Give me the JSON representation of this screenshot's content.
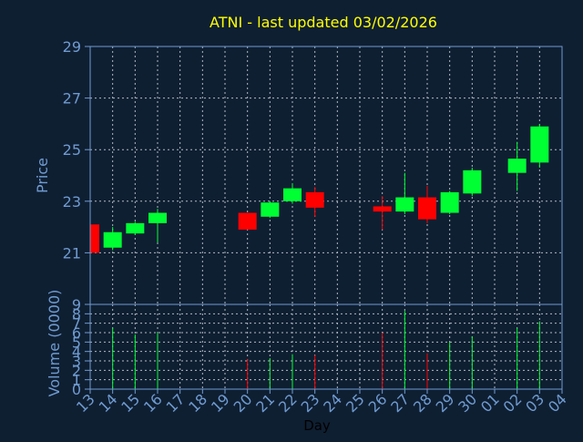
{
  "title": "ATNI - last updated 03/02/2026",
  "colors": {
    "background": "#0f1f32",
    "title": "#ffff00",
    "axis_text": "#6f9bd1",
    "frame": "#6f9bd1",
    "grid": "#b0b8c4",
    "up": "#00ff33",
    "down": "#ff0000"
  },
  "chart_data": [
    {
      "type": "candlestick",
      "title": "ATNI - last updated 03/02/2026",
      "ylabel": "Price",
      "ylim": [
        19,
        29
      ],
      "yticks": [
        "21",
        "23",
        "25",
        "27",
        "29"
      ],
      "grid": true,
      "days": [
        "13",
        "14",
        "15",
        "16",
        "17",
        "18",
        "19",
        "20",
        "21",
        "22",
        "23",
        "24",
        "25",
        "26",
        "27",
        "28",
        "29",
        "30",
        "01",
        "02",
        "03",
        "04"
      ],
      "candles": [
        {
          "day": "13",
          "open": 22.1,
          "close": 21.0,
          "high": 22.1,
          "low": 21.0
        },
        {
          "day": "14",
          "open": 21.2,
          "close": 21.8,
          "high": 22.0,
          "low": 21.1
        },
        {
          "day": "15",
          "open": 21.75,
          "close": 22.15,
          "high": 22.2,
          "low": 21.7
        },
        {
          "day": "16",
          "open": 22.15,
          "close": 22.55,
          "high": 22.7,
          "low": 21.4
        },
        {
          "day": "20",
          "open": 22.55,
          "close": 21.9,
          "high": 22.55,
          "low": 21.9
        },
        {
          "day": "21",
          "open": 22.4,
          "close": 22.95,
          "high": 23.0,
          "low": 22.35
        },
        {
          "day": "22",
          "open": 23.0,
          "close": 23.5,
          "high": 23.7,
          "low": 22.9
        },
        {
          "day": "23",
          "open": 23.35,
          "close": 22.75,
          "high": 23.55,
          "low": 22.4
        },
        {
          "day": "26",
          "open": 22.8,
          "close": 22.6,
          "high": 23.2,
          "low": 21.9
        },
        {
          "day": "27",
          "open": 22.6,
          "close": 23.15,
          "high": 24.1,
          "low": 22.5
        },
        {
          "day": "28",
          "open": 23.15,
          "close": 22.3,
          "high": 23.6,
          "low": 22.15
        },
        {
          "day": "29",
          "open": 22.55,
          "close": 23.35,
          "high": 23.4,
          "low": 22.5
        },
        {
          "day": "30",
          "open": 23.3,
          "close": 24.2,
          "high": 24.3,
          "low": 23.2
        },
        {
          "day": "02",
          "open": 24.1,
          "close": 24.65,
          "high": 25.3,
          "low": 23.4
        },
        {
          "day": "03",
          "open": 24.5,
          "close": 25.9,
          "high": 26.0,
          "low": 24.3
        }
      ]
    },
    {
      "type": "bar",
      "ylabel": "Volume (0000)",
      "xlabel": "Day",
      "ylim": [
        0,
        9
      ],
      "yticks": [
        "0",
        "1",
        "2",
        "3",
        "4",
        "5",
        "6",
        "7",
        "8",
        "9"
      ],
      "grid": true,
      "days": [
        "13",
        "14",
        "15",
        "16",
        "17",
        "18",
        "19",
        "20",
        "21",
        "22",
        "23",
        "24",
        "25",
        "26",
        "27",
        "28",
        "29",
        "30",
        "01",
        "02",
        "03",
        "04"
      ],
      "bars": [
        {
          "day": "13",
          "value": 0.0,
          "dir": "down"
        },
        {
          "day": "14",
          "value": 6.5,
          "dir": "up"
        },
        {
          "day": "15",
          "value": 5.8,
          "dir": "up"
        },
        {
          "day": "16",
          "value": 6.0,
          "dir": "up"
        },
        {
          "day": "20",
          "value": 3.2,
          "dir": "down"
        },
        {
          "day": "21",
          "value": 3.3,
          "dir": "up"
        },
        {
          "day": "22",
          "value": 3.7,
          "dir": "up"
        },
        {
          "day": "23",
          "value": 3.6,
          "dir": "down"
        },
        {
          "day": "26",
          "value": 6.0,
          "dir": "down"
        },
        {
          "day": "27",
          "value": 8.3,
          "dir": "up"
        },
        {
          "day": "28",
          "value": 3.8,
          "dir": "down"
        },
        {
          "day": "29",
          "value": 5.0,
          "dir": "up"
        },
        {
          "day": "30",
          "value": 5.6,
          "dir": "up"
        },
        {
          "day": "02",
          "value": 6.5,
          "dir": "up"
        },
        {
          "day": "03",
          "value": 7.2,
          "dir": "up"
        }
      ]
    }
  ]
}
